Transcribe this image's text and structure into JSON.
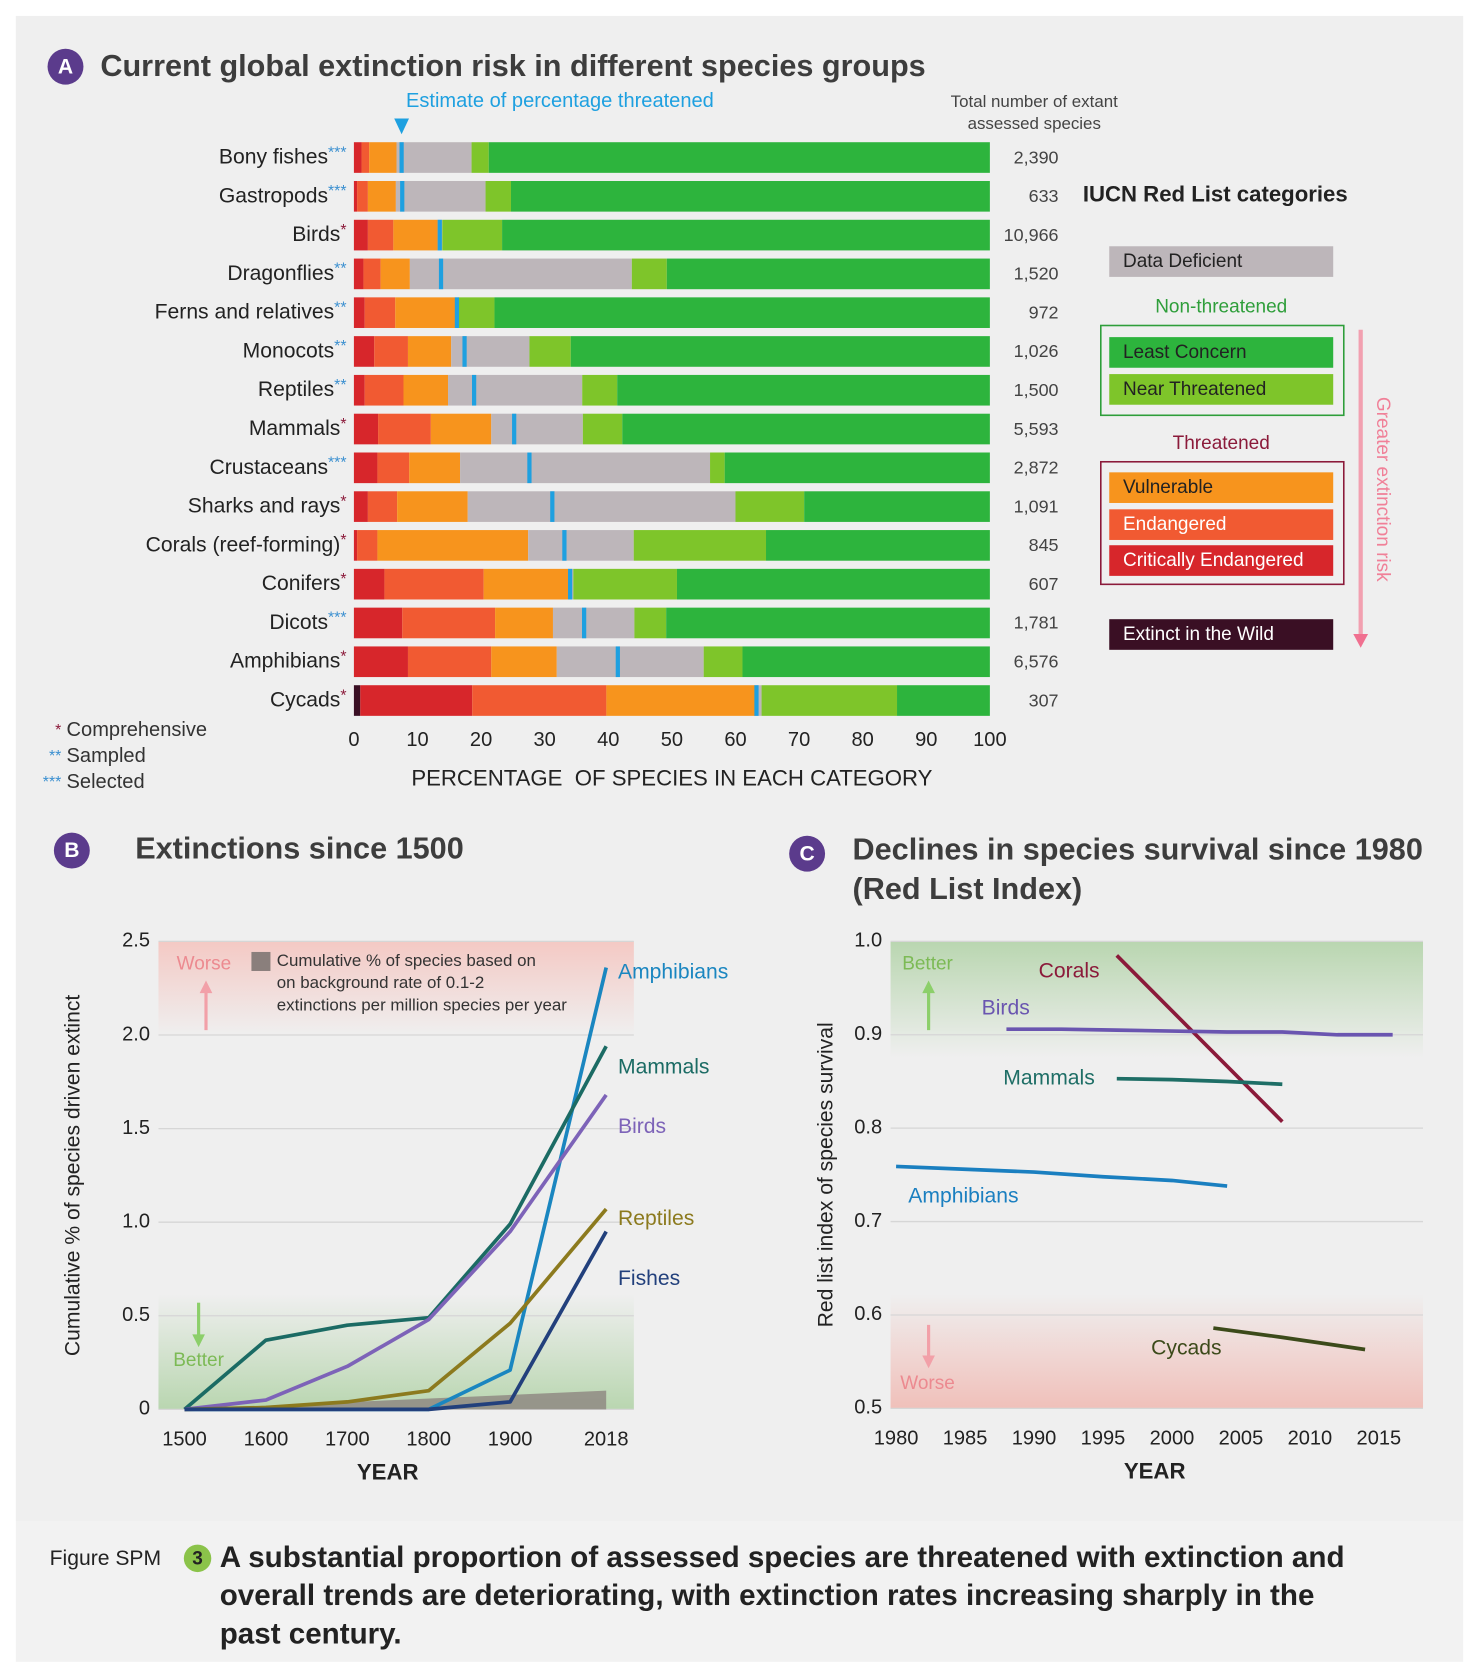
{
  "chart_data": [
    {
      "type": "stacked-bar",
      "panel": "A",
      "title": "Current global extinction risk in different species groups",
      "categories": [
        "Bony fishes",
        "Gastropods",
        "Birds",
        "Dragonflies",
        "Ferns and relatives",
        "Monocots",
        "Reptiles",
        "Mammals",
        "Crustaceans",
        "Sharks and rays",
        "Corals (reef-forming)",
        "Conifers",
        "Dicots",
        "Amphibians",
        "Cycads"
      ],
      "category_markers": [
        "***",
        "***",
        "*",
        "**",
        "**",
        "**",
        "**",
        "*",
        "***",
        "*",
        "*",
        "*",
        "***",
        "*",
        "*"
      ],
      "series": [
        {
          "name": "Extinct in the Wild",
          "color": "#3a0f24",
          "values": [
            0,
            0,
            0,
            0,
            0,
            0,
            0,
            0,
            0,
            0,
            0,
            0,
            0,
            0,
            1
          ]
        },
        {
          "name": "Critically Endangered",
          "color": "#d7262b",
          "values": [
            1.2,
            0.5,
            2.2,
            1.5,
            1.7,
            3.2,
            1.7,
            3.8,
            3.7,
            2.2,
            0.5,
            4.8,
            7.6,
            8.5,
            17.6
          ]
        },
        {
          "name": "Endangered",
          "color": "#f15a32",
          "values": [
            1.2,
            1.7,
            4,
            2.7,
            4.8,
            5.3,
            6.1,
            8.3,
            5,
            4.6,
            3.2,
            15.6,
            14.6,
            13.1,
            21.1
          ]
        },
        {
          "name": "Vulnerable",
          "color": "#f7941d",
          "values": [
            4.3,
            4.4,
            7,
            4.6,
            9.4,
            6.8,
            7,
            9.5,
            8,
            11.1,
            23.7,
            13.3,
            9.1,
            10.3,
            23.4
          ]
        },
        {
          "name": "Data Deficient",
          "color": "#bdb6ba",
          "values": [
            11.8,
            14.1,
            0.7,
            34.9,
            0.5,
            12.3,
            21.1,
            14.4,
            39.3,
            42.1,
            16.6,
            0.8,
            12.8,
            23.1,
            1
          ]
        },
        {
          "name": "Near Threatened",
          "color": "#7ec52a",
          "values": [
            2.7,
            4,
            9.4,
            5.5,
            5.7,
            6.5,
            5.5,
            6.2,
            2.3,
            10.8,
            20.8,
            16.3,
            5,
            6.1,
            21.3
          ]
        },
        {
          "name": "Least Concern",
          "color": "#2db43d",
          "values": [
            78.8,
            75.3,
            76.7,
            50.8,
            77.9,
            65.9,
            58.6,
            57.8,
            41.7,
            29.2,
            35.2,
            49.2,
            50.9,
            38.9,
            14.6
          ]
        }
      ],
      "estimate": {
        "name": "Estimate of percentage threatened",
        "color": "#1ea0e0",
        "values": [
          7.5,
          7.6,
          13.5,
          13.7,
          16.2,
          17.4,
          18.9,
          25.2,
          27.6,
          31.2,
          33.1,
          34,
          36.2,
          41.5,
          63.3
        ]
      },
      "totals_title": [
        "Total number of extant",
        "assessed species"
      ],
      "totals": {
        "values": [
          2390,
          633,
          10966,
          1520,
          972,
          1026,
          1500,
          5593,
          2872,
          1091,
          845,
          607,
          1781,
          6576,
          307
        ],
        "value_labels": [
          "2,390",
          "633",
          "10,966",
          "1,520",
          "972",
          "1,026",
          "1,500",
          "5,593",
          "2,872",
          "1,091",
          "845",
          "607",
          "1,781",
          "6,576",
          "307"
        ]
      },
      "legend_title": "IUCN Red List categories",
      "legend_groups": [
        {
          "name": "Non-threatened",
          "color": "#2e9e3a"
        },
        {
          "name": "Threatened",
          "color": "#8b1a3a"
        }
      ],
      "risk_arrow": "Greater extinction risk",
      "notes": [
        {
          "marker": "*",
          "text": "Comprehensive",
          "color": "#8b1a3a"
        },
        {
          "marker": "**",
          "text": "Sampled",
          "color": "#3a8fd0"
        },
        {
          "marker": "***",
          "text": "Selected",
          "color": "#3a8fd0"
        }
      ],
      "xlim": [
        0,
        100
      ],
      "xticks": [
        0,
        10,
        20,
        30,
        40,
        50,
        60,
        70,
        80,
        90,
        100
      ],
      "xlabel": "PERCENTAGE  OF SPECIES IN EACH CATEGORY"
    },
    {
      "type": "line",
      "panel": "B",
      "title": "Extinctions since 1500",
      "x": [
        1500,
        1600,
        1700,
        1800,
        1900,
        2018
      ],
      "series": [
        {
          "name": "Amphibians",
          "color": "#1a86c0",
          "values": [
            0,
            0,
            0,
            0,
            0.21,
            2.36
          ]
        },
        {
          "name": "Mammals",
          "color": "#1b6b64",
          "values": [
            0,
            0.37,
            0.45,
            0.49,
            0.99,
            1.94
          ]
        },
        {
          "name": "Birds",
          "color": "#7d63b8",
          "values": [
            0,
            0.05,
            0.23,
            0.48,
            0.95,
            1.68
          ]
        },
        {
          "name": "Reptiles",
          "color": "#8c7a1e",
          "values": [
            0,
            0.01,
            0.04,
            0.1,
            0.46,
            1.07
          ]
        },
        {
          "name": "Fishes",
          "color": "#22407c",
          "values": [
            0,
            0,
            0,
            0,
            0.04,
            0.95
          ]
        }
      ],
      "background": {
        "color": "#8a7f7c",
        "x": [
          1500,
          2018
        ],
        "values": [
          0,
          0.1
        ],
        "label": [
          "Cumulative % of species based on",
          "on background rate of 0.1-2",
          "extinctions per million species per year"
        ]
      },
      "worse_label": "Worse",
      "better_label": "Better",
      "xlim": [
        1468,
        2052
      ],
      "xticks": [
        1500,
        1600,
        1700,
        1800,
        1900,
        2018
      ],
      "ylim": [
        0,
        2.5
      ],
      "yticks": [
        0,
        0.5,
        {
          "value": 1,
          "label": "1.0"
        },
        1.5,
        {
          "value": 2,
          "label": "2.0"
        },
        2.5
      ],
      "xlabel": "YEAR",
      "ylabel": "Cumulative % of species driven extinct",
      "grid": true
    },
    {
      "type": "line",
      "panel": "C",
      "title": [
        "Declines in species survival since 1980",
        "(Red List Index)"
      ],
      "series": [
        {
          "name": "Corals",
          "color": "#8b1a3a",
          "x": [
            1996,
            2008
          ],
          "values": [
            0.985,
            0.807
          ]
        },
        {
          "name": "Birds",
          "color": "#6a55b0",
          "x": [
            1988,
            1992,
            1996,
            2000,
            2004,
            2008,
            2012,
            2016
          ],
          "values": [
            0.906,
            0.906,
            0.905,
            0.904,
            0.903,
            0.903,
            0.9,
            0.9
          ]
        },
        {
          "name": "Mammals",
          "color": "#1e6e66",
          "x": [
            1996,
            2000,
            2004,
            2008
          ],
          "values": [
            0.853,
            0.852,
            0.85,
            0.847
          ]
        },
        {
          "name": "Amphibians",
          "color": "#1a7fc0",
          "x": [
            1980,
            1985,
            1990,
            1995,
            2000,
            2004
          ],
          "values": [
            0.759,
            0.756,
            0.753,
            0.748,
            0.744,
            0.738
          ]
        },
        {
          "name": "Cycads",
          "color": "#3c4a1a",
          "x": [
            2003,
            2008,
            2014
          ],
          "values": [
            0.586,
            0.576,
            0.563
          ]
        }
      ],
      "worse_label": "Worse",
      "better_label": "Better",
      "xlim": [
        1979.6,
        2018.2
      ],
      "xticks": [
        1980,
        1985,
        1990,
        1995,
        2000,
        2005,
        2010,
        2015
      ],
      "ylim": [
        0.5,
        1.0
      ],
      "yticks": [
        0.5,
        0.6,
        0.7,
        0.8,
        0.9,
        {
          "value": 1,
          "label": "1.0"
        }
      ],
      "xlabel": "YEAR",
      "ylabel": "Red list index of species survival",
      "grid": true
    }
  ],
  "caption": {
    "label": "Figure SPM",
    "number": "3",
    "lines": [
      "A substantial proportion of assessed species are threatened with extinction and",
      "overall trends are deteriorating, with extinction rates increasing sharply in the",
      "past century."
    ]
  }
}
